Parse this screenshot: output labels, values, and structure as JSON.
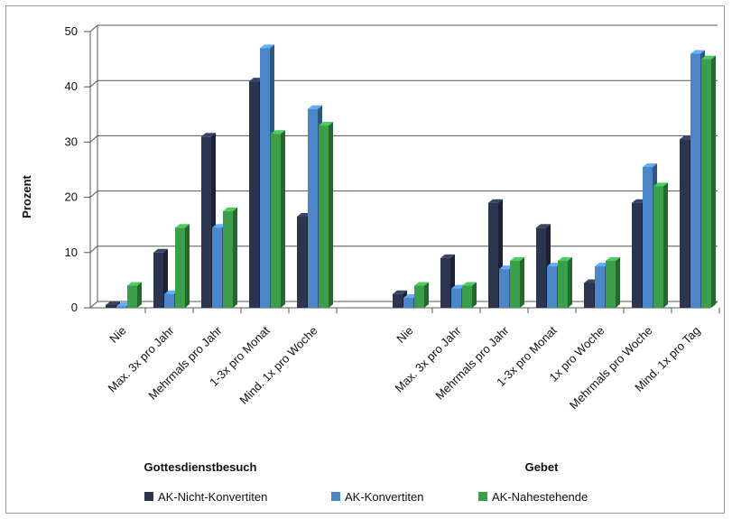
{
  "chart_data": {
    "type": "bar",
    "ylabel": "Prozent",
    "ylim": [
      0,
      50
    ],
    "yticks": [
      "0",
      "10",
      "20",
      "30",
      "40",
      "50"
    ],
    "grid": true,
    "legend_position": "bottom",
    "groups": [
      {
        "label": "Gottesdienstbesuch",
        "categories": [
          "Nie",
          "Max. 3x pro Jahr",
          "Mehrmals pro Jahr",
          "1-3x pro Monat",
          "Mind. 1x pro Woche"
        ],
        "series": [
          {
            "name": "AK-Nicht-Konvertiten",
            "values": [
              0.5,
              10,
              31,
              41,
              16.5
            ]
          },
          {
            "name": "AK-Konvertiten",
            "values": [
              0.3,
              2.5,
              14.5,
              47,
              36
            ]
          },
          {
            "name": "AK-Nahestehende",
            "values": [
              4,
              14.5,
              17.5,
              31.5,
              33
            ]
          }
        ]
      },
      {
        "label": "Gebet",
        "categories": [
          "Nie",
          "Max. 3x pro Jahr",
          "Mehrmals pro Jahr",
          "1-3x pro Monat",
          "1x pro Woche",
          "Mehrmals pro Woche",
          "Mind. 1x pro Tag"
        ],
        "series": [
          {
            "name": "AK-Nicht-Konvertiten",
            "values": [
              2.5,
              9,
              19,
              14.5,
              4.5,
              19,
              30.5
            ]
          },
          {
            "name": "AK-Konvertiten",
            "values": [
              1.8,
              3.5,
              7,
              7.5,
              7.5,
              25.5,
              46
            ]
          },
          {
            "name": "AK-Nahestehende",
            "values": [
              4,
              4,
              8.5,
              8.5,
              8.5,
              22,
              45
            ]
          }
        ]
      }
    ],
    "series_colors": {
      "AK-Nicht-Konvertiten": "#2b3550",
      "AK-Konvertiten": "#4a86c8",
      "AK-Nahestehende": "#3a9e4a"
    },
    "legend": [
      "AK-Nicht-Konvertiten",
      "AK-Konvertiten",
      "AK-Nahestehende"
    ]
  }
}
